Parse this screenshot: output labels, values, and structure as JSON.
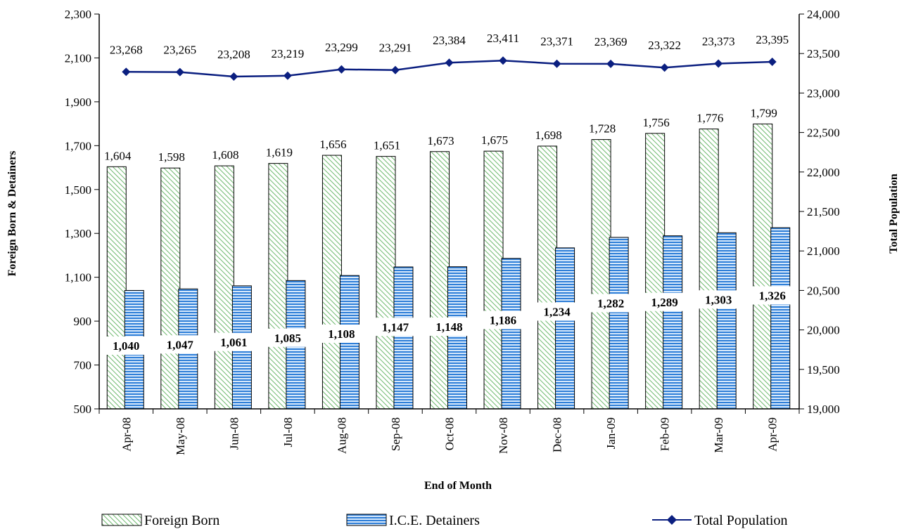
{
  "chart_data": {
    "type": "bar",
    "categories": [
      "Apr-08",
      "May-08",
      "Jun-08",
      "Jul-08",
      "Aug-08",
      "Sep-08",
      "Oct-08",
      "Nov-08",
      "Dec-08",
      "Jan-09",
      "Feb-09",
      "Mar-09",
      "Apr-09"
    ],
    "series": [
      {
        "name": "Foreign Born",
        "type": "bar",
        "axis": "left",
        "color": "#5aa05a",
        "values": [
          1604,
          1598,
          1608,
          1619,
          1656,
          1651,
          1673,
          1675,
          1698,
          1728,
          1756,
          1776,
          1799
        ],
        "labels": [
          "1,604",
          "1,598",
          "1,608",
          "1,619",
          "1,656",
          "1,651",
          "1,673",
          "1,675",
          "1,698",
          "1,728",
          "1,756",
          "1,776",
          "1,799"
        ]
      },
      {
        "name": "I.C.E. Detainers",
        "type": "bar",
        "axis": "left",
        "color": "#2f7fd8",
        "values": [
          1040,
          1047,
          1061,
          1085,
          1108,
          1147,
          1148,
          1186,
          1234,
          1282,
          1289,
          1303,
          1326
        ],
        "labels": [
          "1,040",
          "1,047",
          "1,061",
          "1,085",
          "1,108",
          "1,147",
          "1,148",
          "1,186",
          "1,234",
          "1,282",
          "1,289",
          "1,303",
          "1,326"
        ]
      },
      {
        "name": "Total Population",
        "type": "line",
        "axis": "right",
        "color": "#0b1f80",
        "values": [
          23268,
          23265,
          23208,
          23219,
          23299,
          23291,
          23384,
          23411,
          23371,
          23369,
          23322,
          23373,
          23395
        ],
        "labels": [
          "23,268",
          "23,265",
          "23,208",
          "23,219",
          "23,299",
          "23,291",
          "23,384",
          "23,411",
          "23,371",
          "23,369",
          "23,322",
          "23,373",
          "23,395"
        ]
      }
    ],
    "xlabel": "End of Month",
    "ylabel": "Foreign Born & Detainers",
    "y2label": "Total Population",
    "ylim": [
      500,
      2300
    ],
    "y2lim": [
      19000,
      24000
    ],
    "yticks": [
      500,
      700,
      900,
      1100,
      1300,
      1500,
      1700,
      1900,
      2100,
      2300
    ],
    "ytick_labels": [
      "500",
      "700",
      "900",
      "1,100",
      "1,300",
      "1,500",
      "1,700",
      "1,900",
      "2,100",
      "2,300"
    ],
    "y2ticks": [
      19000,
      19500,
      20000,
      20500,
      21000,
      21500,
      22000,
      22500,
      23000,
      23500,
      24000
    ],
    "y2tick_labels": [
      "19,000",
      "19,500",
      "20,000",
      "20,500",
      "21,000",
      "21,500",
      "22,000",
      "22,500",
      "23,000",
      "23,500",
      "24,000"
    ],
    "grid": false,
    "legend_position": "bottom"
  }
}
